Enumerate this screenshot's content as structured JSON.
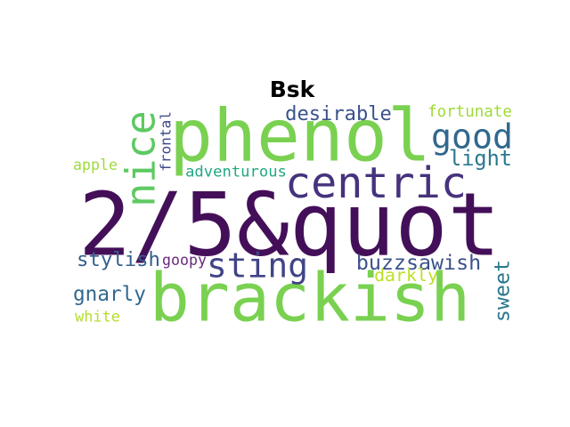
{
  "title": "Bsk",
  "words": [
    {
      "text": "2/5&quot",
      "color": "#440f59"
    },
    {
      "text": "brackish",
      "color": "#7ad151"
    },
    {
      "text": "phenol",
      "color": "#7ad151"
    },
    {
      "text": "centric",
      "color": "#46327e"
    },
    {
      "text": "nice",
      "color": "#5ec962"
    },
    {
      "text": "sting",
      "color": "#414487"
    },
    {
      "text": "good",
      "color": "#31688e"
    },
    {
      "text": "desirable",
      "color": "#3b528b"
    },
    {
      "text": "fortunate",
      "color": "#a0da39"
    },
    {
      "text": "light",
      "color": "#2a788e"
    },
    {
      "text": "frontal",
      "color": "#3e4989"
    },
    {
      "text": "apple",
      "color": "#a0da39"
    },
    {
      "text": "adventurous",
      "color": "#22a884"
    },
    {
      "text": "stylish",
      "color": "#355f8d"
    },
    {
      "text": "goopy",
      "color": "#6a2a7c"
    },
    {
      "text": "buzzsawish",
      "color": "#3b528b"
    },
    {
      "text": "darkly",
      "color": "#bddf26"
    },
    {
      "text": "sweet",
      "color": "#2a788e"
    },
    {
      "text": "gnarly",
      "color": "#31688e"
    },
    {
      "text": "white",
      "color": "#b5de2b"
    }
  ]
}
